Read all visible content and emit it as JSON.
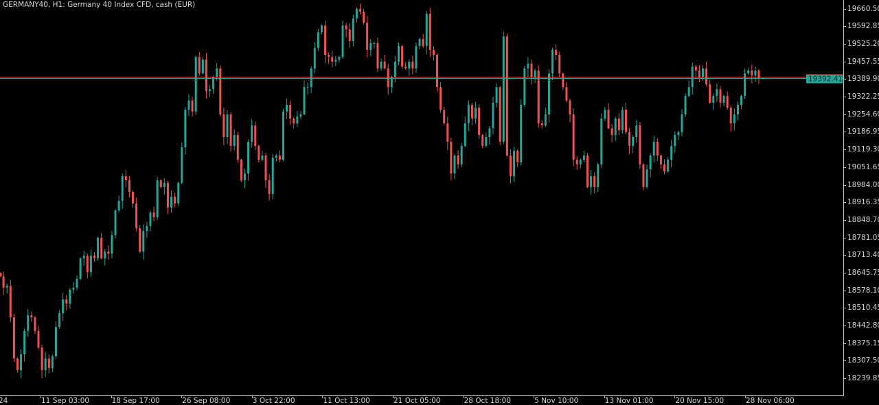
{
  "header": {
    "title": "GERMANY40, H1:  Germany 40 Index CFD, cash (EUR)"
  },
  "colors": {
    "background": "#000000",
    "bull": "#26a69a",
    "bear": "#ef5350",
    "ask_line": "#ef5350",
    "bid_line": "#26a69a",
    "axis": "#c8c8c8",
    "text": "#d8d8d8"
  },
  "price_axis": {
    "labels": [
      "19660.50",
      "19592.85",
      "19525.20",
      "19457.55",
      "19389.90",
      "19322.25",
      "19254.60",
      "19186.95",
      "19119.30",
      "19051.65",
      "18984.00",
      "18916.35",
      "18848.70",
      "18781.05",
      "18713.40",
      "18645.75",
      "18578.10",
      "18510.45",
      "18442.80",
      "18375.15",
      "18307.50",
      "18239.85"
    ],
    "current_price": "19392.41"
  },
  "time_axis": {
    "labels": [
      "24",
      "11 Sep 03:00",
      "18 Sep 17:00",
      "26 Sep 08:00",
      "3 Oct 22:00",
      "11 Oct 13:00",
      "21 Oct 05:00",
      "28 Oct 18:00",
      "5 Nov 10:00",
      "13 Nov 01:00",
      "20 Nov 15:00",
      "28 Nov 06:00"
    ]
  },
  "chart_data": {
    "type": "candlestick",
    "title": "GERMANY40, H1:  Germany 40 Index CFD, cash (EUR)",
    "timeframe": "H1",
    "ylim": [
      18214,
      19690
    ],
    "grid": false,
    "last_price": 19392.41,
    "closes": [
      18632,
      18588,
      18595,
      18474,
      18316,
      18271,
      18332,
      18422,
      18482,
      18474,
      18422,
      18358,
      18271,
      18316,
      18279,
      18324,
      18437,
      18490,
      18543,
      18527,
      18580,
      18588,
      18622,
      18701,
      18711,
      18648,
      18711,
      18701,
      18780,
      18701,
      18727,
      18719,
      18790,
      18885,
      18922,
      19017,
      19001,
      18956,
      18912,
      18817,
      18727,
      18806,
      18825,
      18877,
      18859,
      19001,
      18975,
      18991,
      18896,
      18938,
      18912,
      18991,
      19128,
      19272,
      19307,
      19265,
      19475,
      19412,
      19465,
      19344,
      19351,
      19396,
      19431,
      19254,
      19167,
      19254,
      19133,
      19175,
      19080,
      19001,
      19027,
      19149,
      19212,
      19133,
      19080,
      19096,
      19001,
      18948,
      19088,
      19096,
      19080,
      19265,
      19291,
      19238,
      19220,
      19246,
      19254,
      19359,
      19359,
      19431,
      19510,
      19570,
      19596,
      19483,
      19475,
      19457,
      19465,
      19475,
      19596,
      19581,
      19536,
      19623,
      19660,
      19649,
      19607,
      19502,
      19528,
      19528,
      19431,
      19457,
      19431,
      19359,
      19396,
      19457,
      19517,
      19438,
      19431,
      19457,
      19431,
      19517,
      19544,
      19517,
      19641,
      19502,
      19483,
      19359,
      19272,
      19220,
      19149,
      19027,
      19096,
      19062,
      19133,
      19220,
      19291,
      19238,
      19280,
      19175,
      19133,
      19167,
      19201,
      19299,
      19359,
      19149,
      19554,
      19096,
      19017,
      19114,
      19070,
      19291,
      19431,
      19449,
      19396,
      19423,
      19220,
      19212,
      19254,
      19412,
      19502,
      19483,
      19412,
      19359,
      19307,
      19254,
      19080,
      19062,
      19080,
      19096,
      18975,
      19017,
      18975,
      19062,
      19238,
      19272,
      19201,
      19175,
      19238,
      19193,
      19272,
      19186,
      19133,
      19167,
      19212,
      19062,
      18975,
      19043,
      19096,
      19149,
      19096,
      19062,
      19035,
      19080,
      19133,
      19175,
      19186,
      19254,
      19325,
      19359,
      19438,
      19423,
      19396,
      19431,
      19370,
      19299,
      19325,
      19351,
      19299,
      19325,
      19280,
      19220,
      19254,
      19291,
      19325,
      19412,
      19423,
      19404,
      19423,
      19392.41
    ]
  }
}
